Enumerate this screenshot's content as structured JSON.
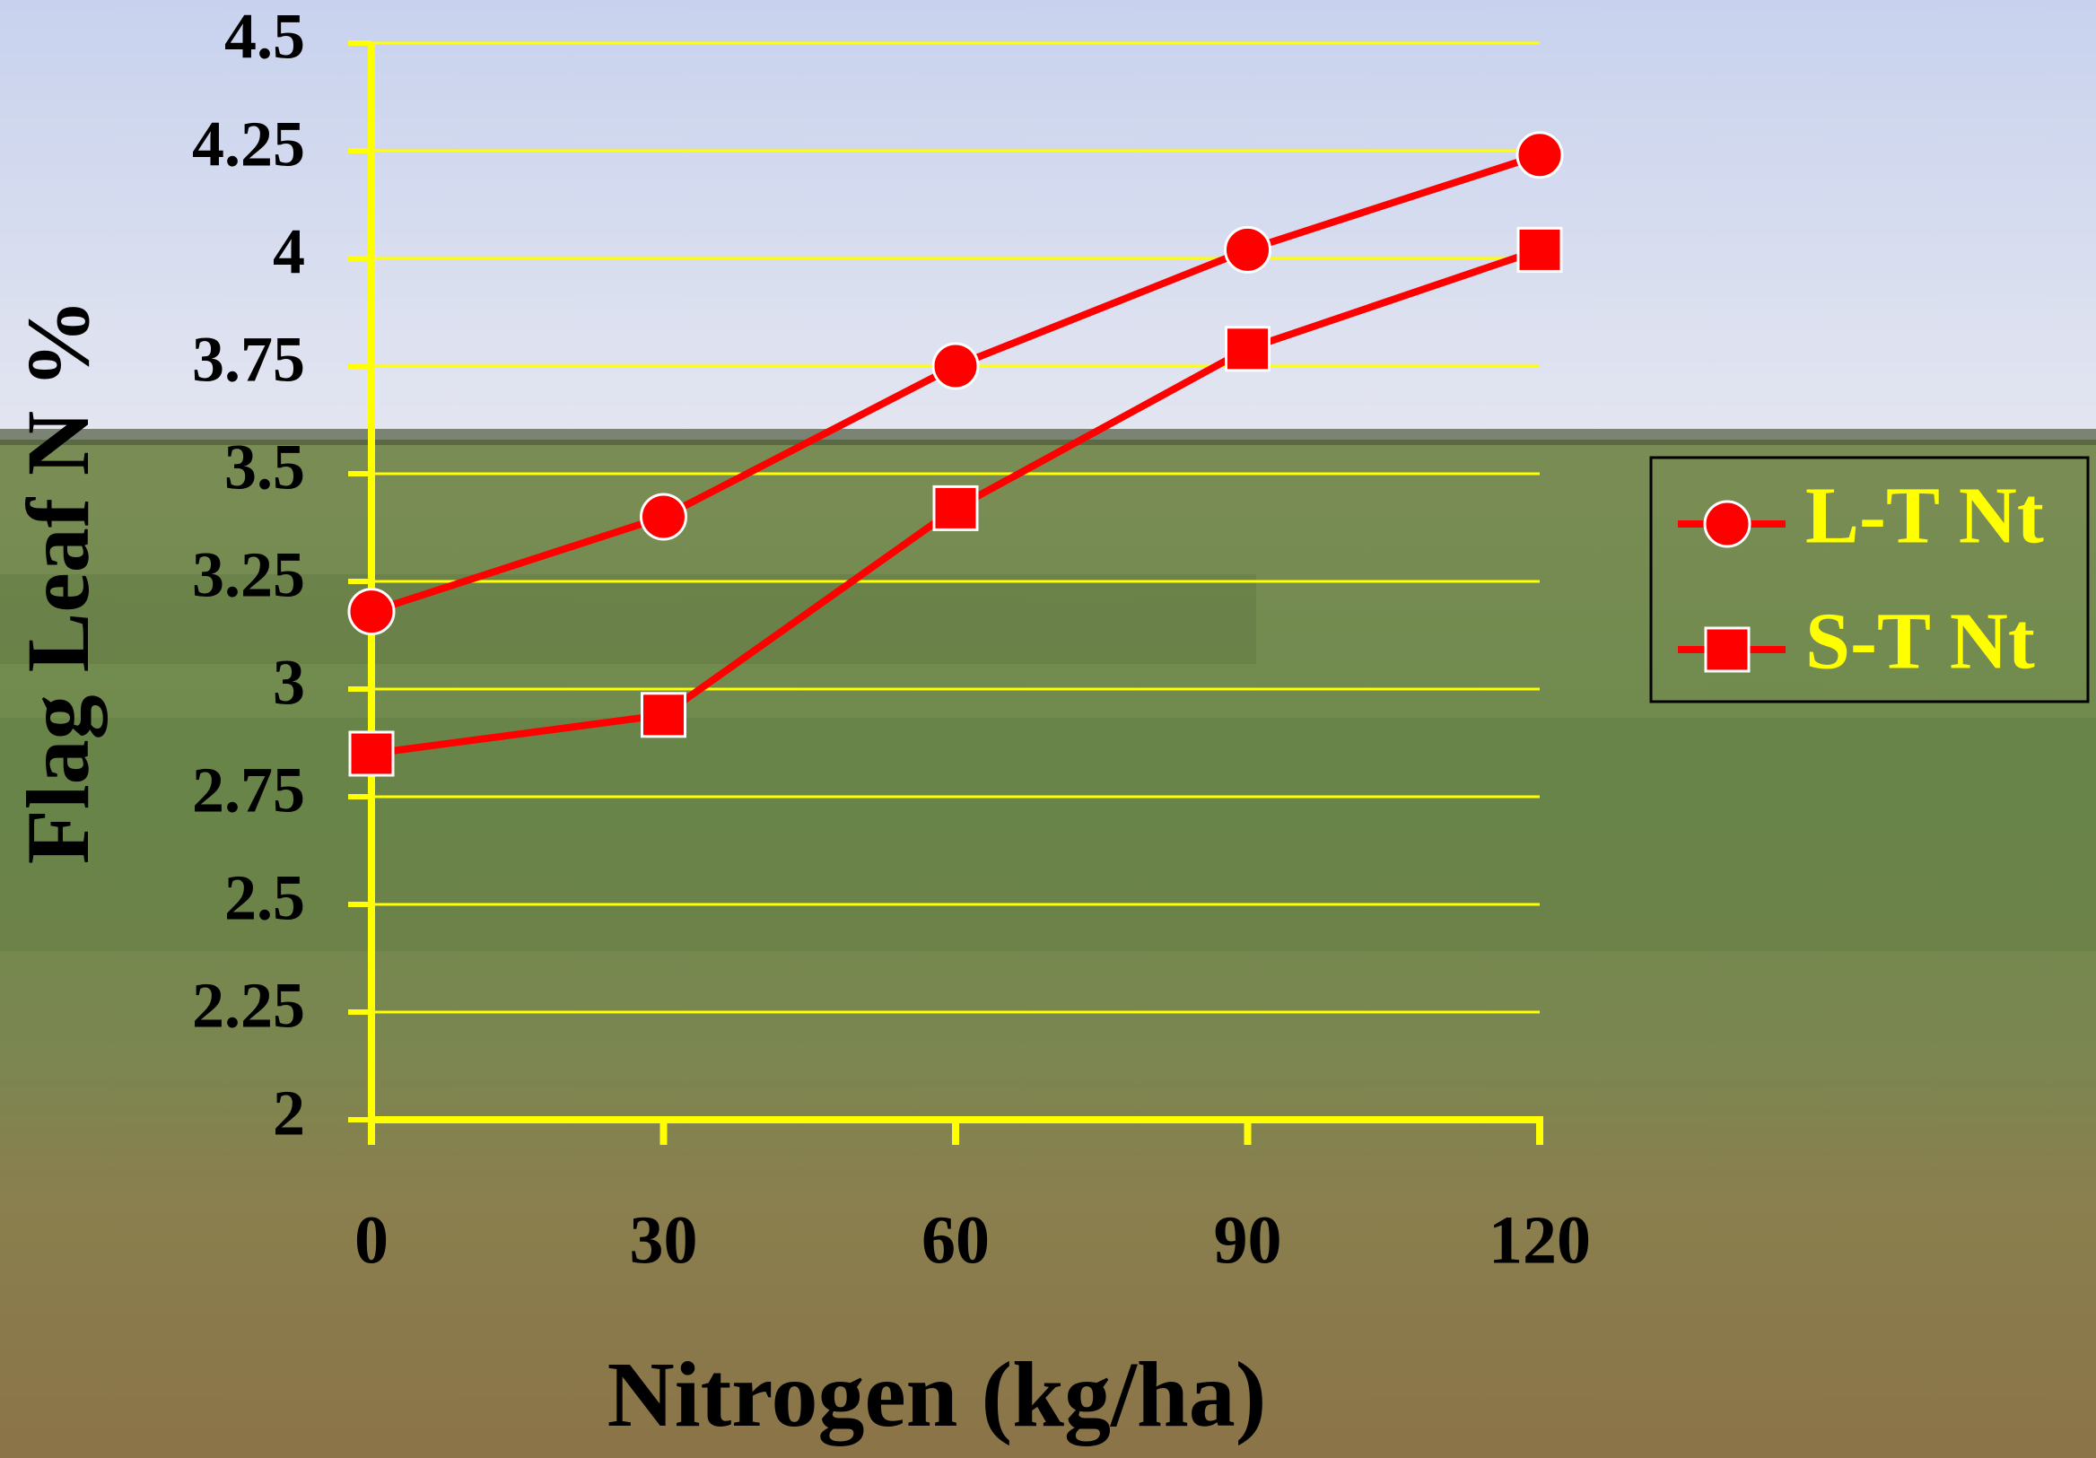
{
  "chart_data": {
    "type": "line",
    "x_label": "Nitrogen (kg/ha)",
    "y_label": "Flag Leaf N %",
    "x": [
      0,
      30,
      60,
      90,
      120
    ],
    "xlim": [
      0,
      120
    ],
    "xticks": [
      0,
      30,
      60,
      90,
      120
    ],
    "ylim": [
      2,
      4.5
    ],
    "yticks": [
      2,
      2.25,
      2.5,
      2.75,
      3,
      3.25,
      3.5,
      3.75,
      4,
      4.25,
      4.5
    ],
    "grid": true,
    "legend": "right",
    "series": [
      {
        "name": "L-T Nt",
        "color": "#ff0000",
        "marker": "circle",
        "values": [
          3.18,
          3.4,
          3.75,
          4.02,
          4.24
        ]
      },
      {
        "name": "S-T Nt",
        "color": "#ff0000",
        "marker": "square",
        "values": [
          2.85,
          2.94,
          3.42,
          3.79,
          4.02
        ]
      }
    ]
  }
}
